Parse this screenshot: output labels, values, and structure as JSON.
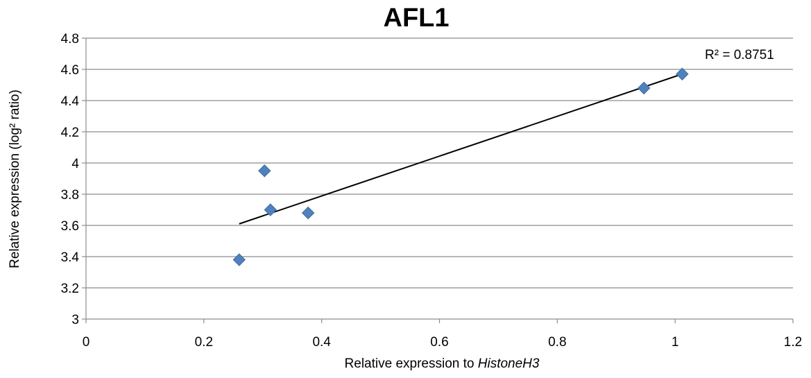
{
  "chart_data": {
    "type": "scatter",
    "title": "AFL1",
    "xlabel": "Relative expression  to ",
    "xlabel_italic": "HistoneH3",
    "ylabel": "Relative expression (log² ratio)",
    "xlim": [
      0,
      1.2
    ],
    "ylim": [
      3,
      4.8
    ],
    "xticks": [
      "0",
      "0.2",
      "0.4",
      "0.6",
      "0.8",
      "1",
      "1.2"
    ],
    "yticks": [
      "3",
      "3.2",
      "3.4",
      "3.6",
      "3.8",
      "4",
      "4.2",
      "4.4",
      "4.6",
      "4.8"
    ],
    "grid": "horizontal",
    "series": [
      {
        "marker": "diamond",
        "color": "#4f81bd",
        "points": [
          {
            "x": 0.26,
            "y": 3.38
          },
          {
            "x": 0.303,
            "y": 3.95
          },
          {
            "x": 0.313,
            "y": 3.7
          },
          {
            "x": 0.377,
            "y": 3.68
          },
          {
            "x": 0.947,
            "y": 4.48
          },
          {
            "x": 1.012,
            "y": 4.57
          }
        ]
      }
    ],
    "trendline": {
      "type": "linear",
      "color": "#000000",
      "x": [
        0.26,
        1.012
      ],
      "y": [
        3.61,
        4.57
      ],
      "label": "R² = 0.8751"
    }
  }
}
